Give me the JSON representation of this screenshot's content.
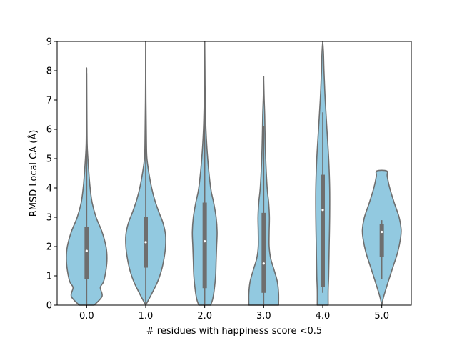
{
  "chart_data": {
    "type": "violin",
    "xlabel": "# residues with happiness score <0.5",
    "ylabel": "RMSD Local CA (Å)",
    "ylim": [
      0,
      9
    ],
    "yticks": [
      "0",
      "1",
      "2",
      "3",
      "4",
      "5",
      "6",
      "7",
      "8",
      "9"
    ],
    "categories": [
      "0.0",
      "1.0",
      "2.0",
      "3.0",
      "4.0",
      "5.0"
    ],
    "colors": {
      "fill": "#92c9e0",
      "edge": "#6e6e6e",
      "median": "#ffffff"
    },
    "grid": false,
    "violins": [
      {
        "category": "0.0",
        "min": 0.0,
        "q1": 0.88,
        "median": 1.85,
        "q3": 2.68,
        "whisker_low": 0.0,
        "whisker_high": 7.92,
        "max": 7.92,
        "profile": [
          [
            0.0,
            0.3
          ],
          [
            0.3,
            0.62
          ],
          [
            0.6,
            0.55
          ],
          [
            0.8,
            0.68
          ],
          [
            1.2,
            0.78
          ],
          [
            1.6,
            0.82
          ],
          [
            2.0,
            0.78
          ],
          [
            2.5,
            0.62
          ],
          [
            3.0,
            0.38
          ],
          [
            3.5,
            0.22
          ],
          [
            4.0,
            0.14
          ],
          [
            4.5,
            0.09
          ],
          [
            5.0,
            0.05
          ],
          [
            5.5,
            0.02
          ],
          [
            6.5,
            0.01
          ],
          [
            7.92,
            0.0
          ]
        ]
      },
      {
        "category": "1.0",
        "min": 0.0,
        "q1": 1.28,
        "median": 2.15,
        "q3": 3.0,
        "whisker_low": 0.0,
        "whisker_high": 9.0,
        "max": 9.0,
        "profile": [
          [
            0.0,
            0.0
          ],
          [
            0.4,
            0.25
          ],
          [
            0.8,
            0.48
          ],
          [
            1.2,
            0.64
          ],
          [
            1.6,
            0.74
          ],
          [
            2.0,
            0.8
          ],
          [
            2.4,
            0.8
          ],
          [
            2.8,
            0.7
          ],
          [
            3.2,
            0.52
          ],
          [
            3.6,
            0.36
          ],
          [
            4.0,
            0.24
          ],
          [
            4.5,
            0.13
          ],
          [
            5.0,
            0.05
          ],
          [
            5.5,
            0.03
          ],
          [
            7.0,
            0.01
          ],
          [
            9.0,
            0.0
          ]
        ]
      },
      {
        "category": "2.0",
        "min": 0.0,
        "q1": 0.58,
        "median": 2.18,
        "q3": 3.5,
        "whisker_low": 0.0,
        "whisker_high": 9.0,
        "max": 9.0,
        "profile": [
          [
            0.0,
            0.24
          ],
          [
            0.2,
            0.32
          ],
          [
            0.5,
            0.38
          ],
          [
            1.0,
            0.44
          ],
          [
            1.5,
            0.46
          ],
          [
            2.0,
            0.48
          ],
          [
            2.5,
            0.5
          ],
          [
            3.0,
            0.46
          ],
          [
            3.5,
            0.36
          ],
          [
            4.0,
            0.24
          ],
          [
            5.0,
            0.12
          ],
          [
            6.0,
            0.05
          ],
          [
            7.0,
            0.02
          ],
          [
            8.0,
            0.01
          ],
          [
            9.0,
            0.0
          ]
        ]
      },
      {
        "category": "3.0",
        "min": 0.0,
        "q1": 0.42,
        "median": 1.42,
        "q3": 3.15,
        "whisker_low": 0.0,
        "whisker_high": 6.1,
        "max": 7.72,
        "profile": [
          [
            0.0,
            0.6
          ],
          [
            0.4,
            0.6
          ],
          [
            0.8,
            0.55
          ],
          [
            1.2,
            0.42
          ],
          [
            1.6,
            0.28
          ],
          [
            2.0,
            0.22
          ],
          [
            2.5,
            0.22
          ],
          [
            3.0,
            0.23
          ],
          [
            3.5,
            0.2
          ],
          [
            4.0,
            0.14
          ],
          [
            5.0,
            0.08
          ],
          [
            6.0,
            0.05
          ],
          [
            6.5,
            0.04
          ],
          [
            7.0,
            0.02
          ],
          [
            7.72,
            0.0
          ]
        ]
      },
      {
        "category": "4.0",
        "min": 0.0,
        "q1": 0.62,
        "median": 3.25,
        "q3": 4.45,
        "whisker_low": 0.42,
        "whisker_high": 6.58,
        "max": 9.0,
        "profile": [
          [
            0.0,
            0.22
          ],
          [
            0.5,
            0.22
          ],
          [
            1.0,
            0.24
          ],
          [
            2.0,
            0.26
          ],
          [
            3.0,
            0.28
          ],
          [
            4.0,
            0.28
          ],
          [
            5.0,
            0.24
          ],
          [
            6.0,
            0.17
          ],
          [
            7.0,
            0.1
          ],
          [
            8.0,
            0.05
          ],
          [
            8.6,
            0.03
          ],
          [
            9.0,
            0.0
          ]
        ]
      },
      {
        "category": "5.0",
        "min": 0.0,
        "q1": 1.65,
        "median": 2.5,
        "q3": 2.78,
        "whisker_low": 0.9,
        "whisker_high": 2.9,
        "max": 4.58,
        "profile": [
          [
            0.0,
            0.0
          ],
          [
            0.3,
            0.08
          ],
          [
            0.8,
            0.26
          ],
          [
            1.3,
            0.45
          ],
          [
            1.8,
            0.64
          ],
          [
            2.3,
            0.76
          ],
          [
            2.6,
            0.78
          ],
          [
            3.0,
            0.7
          ],
          [
            3.5,
            0.5
          ],
          [
            4.0,
            0.32
          ],
          [
            4.4,
            0.22
          ],
          [
            4.58,
            0.2
          ]
        ]
      }
    ]
  }
}
